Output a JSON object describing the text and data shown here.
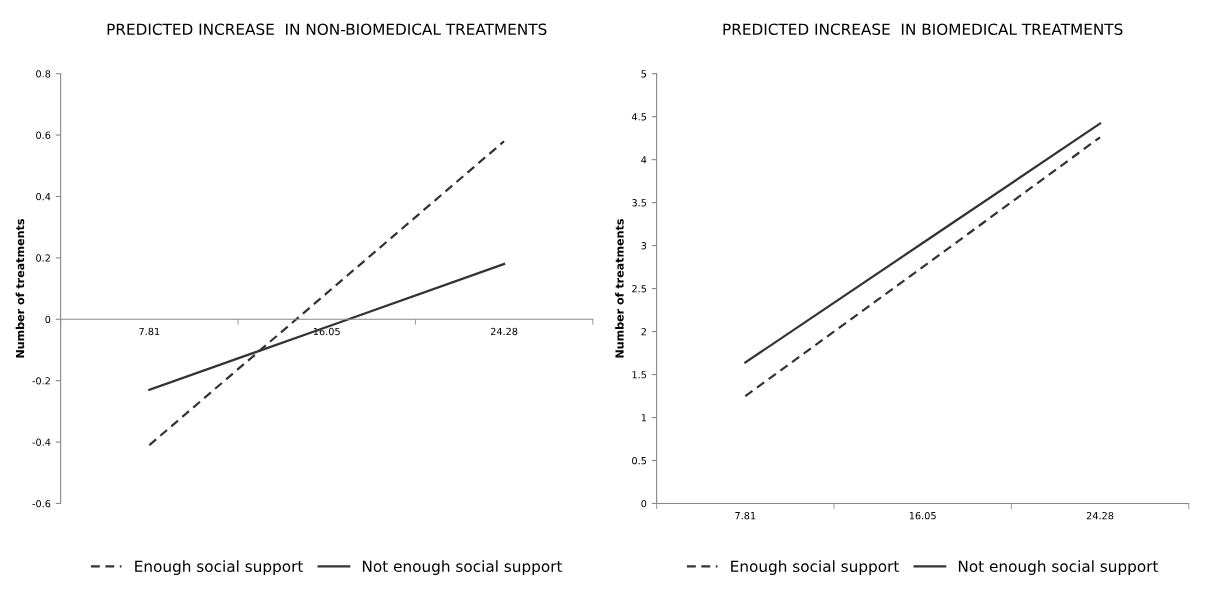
{
  "chart_data": [
    {
      "type": "line",
      "title": "PREDICTED INCREASE  IN NON-BIOMEDICAL TREATMENTS",
      "ylabel": "Number of treatments",
      "categories": [
        "7.81",
        "16.05",
        "24.28"
      ],
      "ylim": [
        -0.6,
        0.8
      ],
      "yticks": [
        -0.6,
        -0.4,
        -0.2,
        0,
        0.2,
        0.4,
        0.6,
        0.8
      ],
      "legend": "bottom",
      "grid": false,
      "series": [
        {
          "name": "Enough social support",
          "color": "#333333",
          "line_style": "dashed",
          "values": [
            -0.41,
            0.085,
            0.58
          ]
        },
        {
          "name": "Not enough social support",
          "color": "#333333",
          "line_style": "solid",
          "values": [
            -0.23,
            -0.025,
            0.18
          ]
        }
      ]
    },
    {
      "type": "line",
      "title": "PREDICTED INCREASE  IN BIOMEDICAL TREATMENTS",
      "ylabel": "Number of treatments",
      "categories": [
        "7.81",
        "16.05",
        "24.28"
      ],
      "ylim": [
        0,
        5
      ],
      "yticks": [
        0,
        0.5,
        1,
        1.5,
        2,
        2.5,
        3,
        3.5,
        4,
        4.5,
        5
      ],
      "legend": "bottom",
      "grid": false,
      "series": [
        {
          "name": "Enough social support",
          "color": "#333333",
          "line_style": "dashed",
          "values": [
            1.25,
            2.75,
            4.26
          ]
        },
        {
          "name": "Not enough social support",
          "color": "#333333",
          "line_style": "solid",
          "values": [
            1.64,
            3.03,
            4.42
          ]
        }
      ]
    }
  ]
}
